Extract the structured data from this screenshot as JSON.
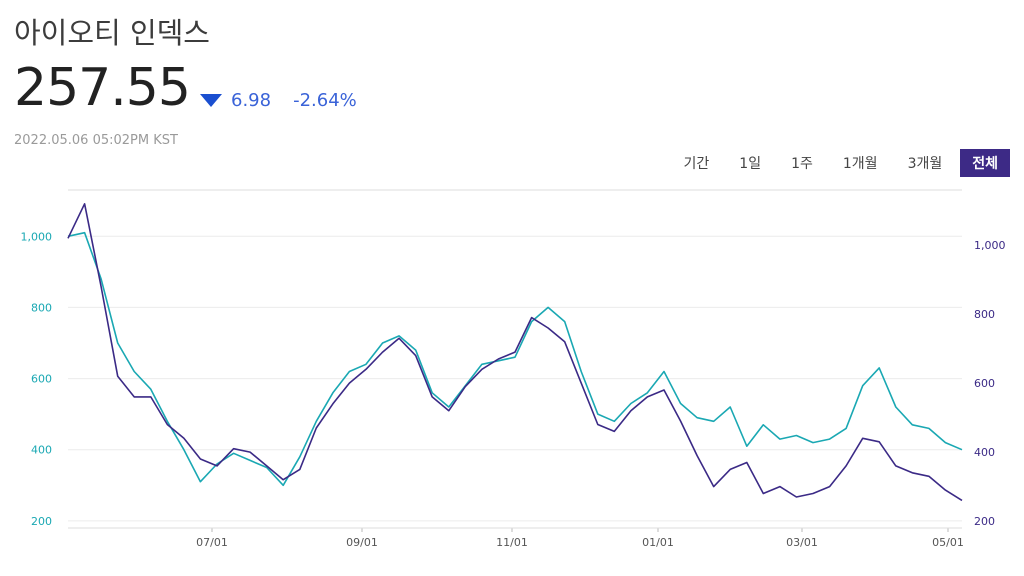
{
  "header": {
    "title": "아이오티 인덱스",
    "price": "257.55",
    "change": "6.98",
    "change_pct": "-2.64%",
    "timestamp": "2022.05.06 05:02PM KST"
  },
  "range_tabs": [
    "기간",
    "1일",
    "1주",
    "1개월",
    "3개월",
    "전체"
  ],
  "active_range": "전체",
  "colors": {
    "series_a": "#1aa8b3",
    "series_b": "#3b2a86",
    "accent": "#3d2a86",
    "down": "#1a4fd0"
  },
  "chart_data": {
    "type": "line",
    "xtick_labels": [
      "07/01",
      "09/01",
      "11/01",
      "01/01",
      "03/01",
      "05/01"
    ],
    "left_axis": {
      "ticks": [
        "1,000",
        "800",
        "600",
        "400",
        "200"
      ],
      "values": [
        1000,
        800,
        600,
        400,
        200
      ],
      "ylim": [
        180,
        1130
      ]
    },
    "right_axis": {
      "ticks": [
        "1,000",
        "800",
        "600",
        "400",
        "200"
      ],
      "values": [
        1000,
        800,
        600,
        400,
        200
      ],
      "ylim": [
        180,
        1160
      ]
    },
    "series": [
      {
        "axis": "left",
        "color": "#1aa8b3",
        "x": [
          "04/26",
          "05/01",
          "05/08",
          "05/15",
          "05/22",
          "05/29",
          "06/05",
          "06/12",
          "06/19",
          "06/26",
          "07/03",
          "07/10",
          "07/17",
          "07/24",
          "07/31",
          "08/07",
          "08/14",
          "08/21",
          "08/28",
          "09/04",
          "09/11",
          "09/18",
          "09/25",
          "10/02",
          "10/09",
          "10/16",
          "10/23",
          "10/30",
          "11/06",
          "11/13",
          "11/20",
          "11/27",
          "12/04",
          "12/11",
          "12/18",
          "12/25",
          "01/01",
          "01/08",
          "01/15",
          "01/22",
          "01/29",
          "02/05",
          "02/12",
          "02/19",
          "02/26",
          "03/05",
          "03/12",
          "03/19",
          "03/26",
          "04/02",
          "04/09",
          "04/16",
          "04/23",
          "04/30",
          "05/06"
        ],
        "y": [
          1000,
          1010,
          880,
          700,
          620,
          570,
          480,
          400,
          310,
          360,
          390,
          370,
          350,
          300,
          380,
          480,
          560,
          620,
          640,
          700,
          720,
          680,
          560,
          520,
          580,
          640,
          650,
          660,
          760,
          800,
          760,
          620,
          500,
          480,
          530,
          560,
          620,
          530,
          490,
          480,
          520,
          410,
          470,
          430,
          440,
          420,
          430,
          460,
          580,
          630,
          520,
          470,
          460,
          420,
          400
        ]
      },
      {
        "axis": "right",
        "color": "#3b2a86",
        "x": [
          "04/26",
          "05/01",
          "05/08",
          "05/15",
          "05/22",
          "05/29",
          "06/05",
          "06/12",
          "06/19",
          "06/26",
          "07/03",
          "07/10",
          "07/17",
          "07/24",
          "07/31",
          "08/07",
          "08/14",
          "08/21",
          "08/28",
          "09/04",
          "09/11",
          "09/18",
          "09/25",
          "10/02",
          "10/09",
          "10/16",
          "10/23",
          "10/30",
          "11/06",
          "11/13",
          "11/20",
          "11/27",
          "12/04",
          "12/11",
          "12/18",
          "12/25",
          "01/01",
          "01/08",
          "01/15",
          "01/22",
          "01/29",
          "02/05",
          "02/12",
          "02/19",
          "02/26",
          "03/05",
          "03/12",
          "03/19",
          "03/26",
          "04/02",
          "04/09",
          "04/16",
          "04/23",
          "04/30",
          "05/06"
        ],
        "y": [
          1020,
          1120,
          880,
          620,
          560,
          560,
          480,
          440,
          380,
          360,
          410,
          400,
          360,
          320,
          350,
          470,
          540,
          600,
          640,
          690,
          730,
          680,
          560,
          520,
          590,
          640,
          670,
          690,
          790,
          760,
          720,
          600,
          480,
          460,
          520,
          560,
          580,
          490,
          390,
          300,
          350,
          370,
          280,
          300,
          270,
          280,
          300,
          360,
          440,
          430,
          360,
          340,
          330,
          290,
          260
        ]
      }
    ]
  }
}
